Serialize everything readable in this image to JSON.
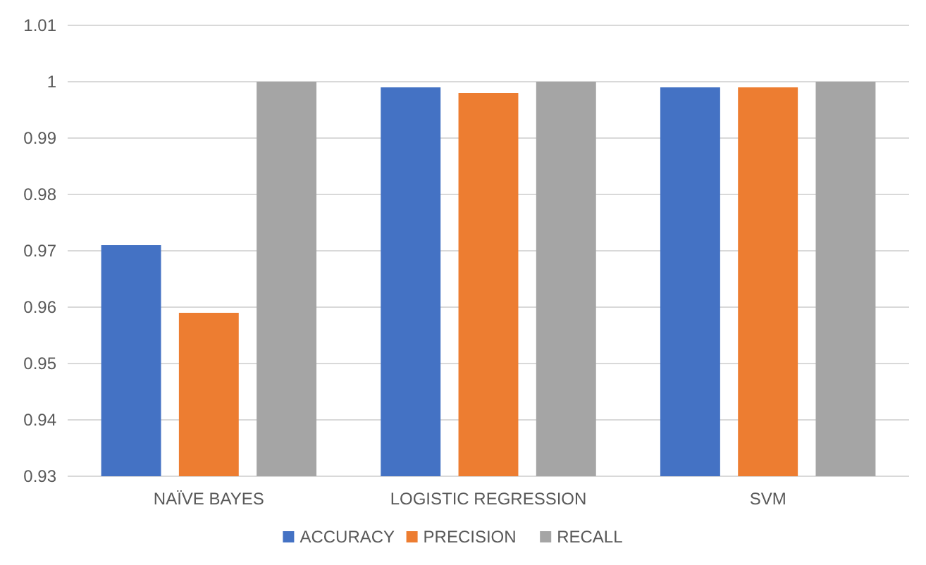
{
  "chart_data": {
    "type": "bar",
    "categories": [
      "NAÏVE BAYES",
      "LOGISTIC REGRESSION",
      "SVM"
    ],
    "series": [
      {
        "name": "ACCURACY",
        "color": "#4472c4",
        "values": [
          0.971,
          0.999,
          0.999
        ]
      },
      {
        "name": "PRECISION",
        "color": "#ed7d31",
        "values": [
          0.959,
          0.998,
          0.999
        ]
      },
      {
        "name": "RECALL",
        "color": "#a5a5a5",
        "values": [
          1,
          1,
          1
        ]
      }
    ],
    "ylim": [
      0.93,
      1.01
    ],
    "yticks": [
      0.93,
      0.94,
      0.95,
      0.96,
      0.97,
      0.98,
      0.99,
      1,
      1.01
    ],
    "grid": "y",
    "legend": "bottom"
  }
}
